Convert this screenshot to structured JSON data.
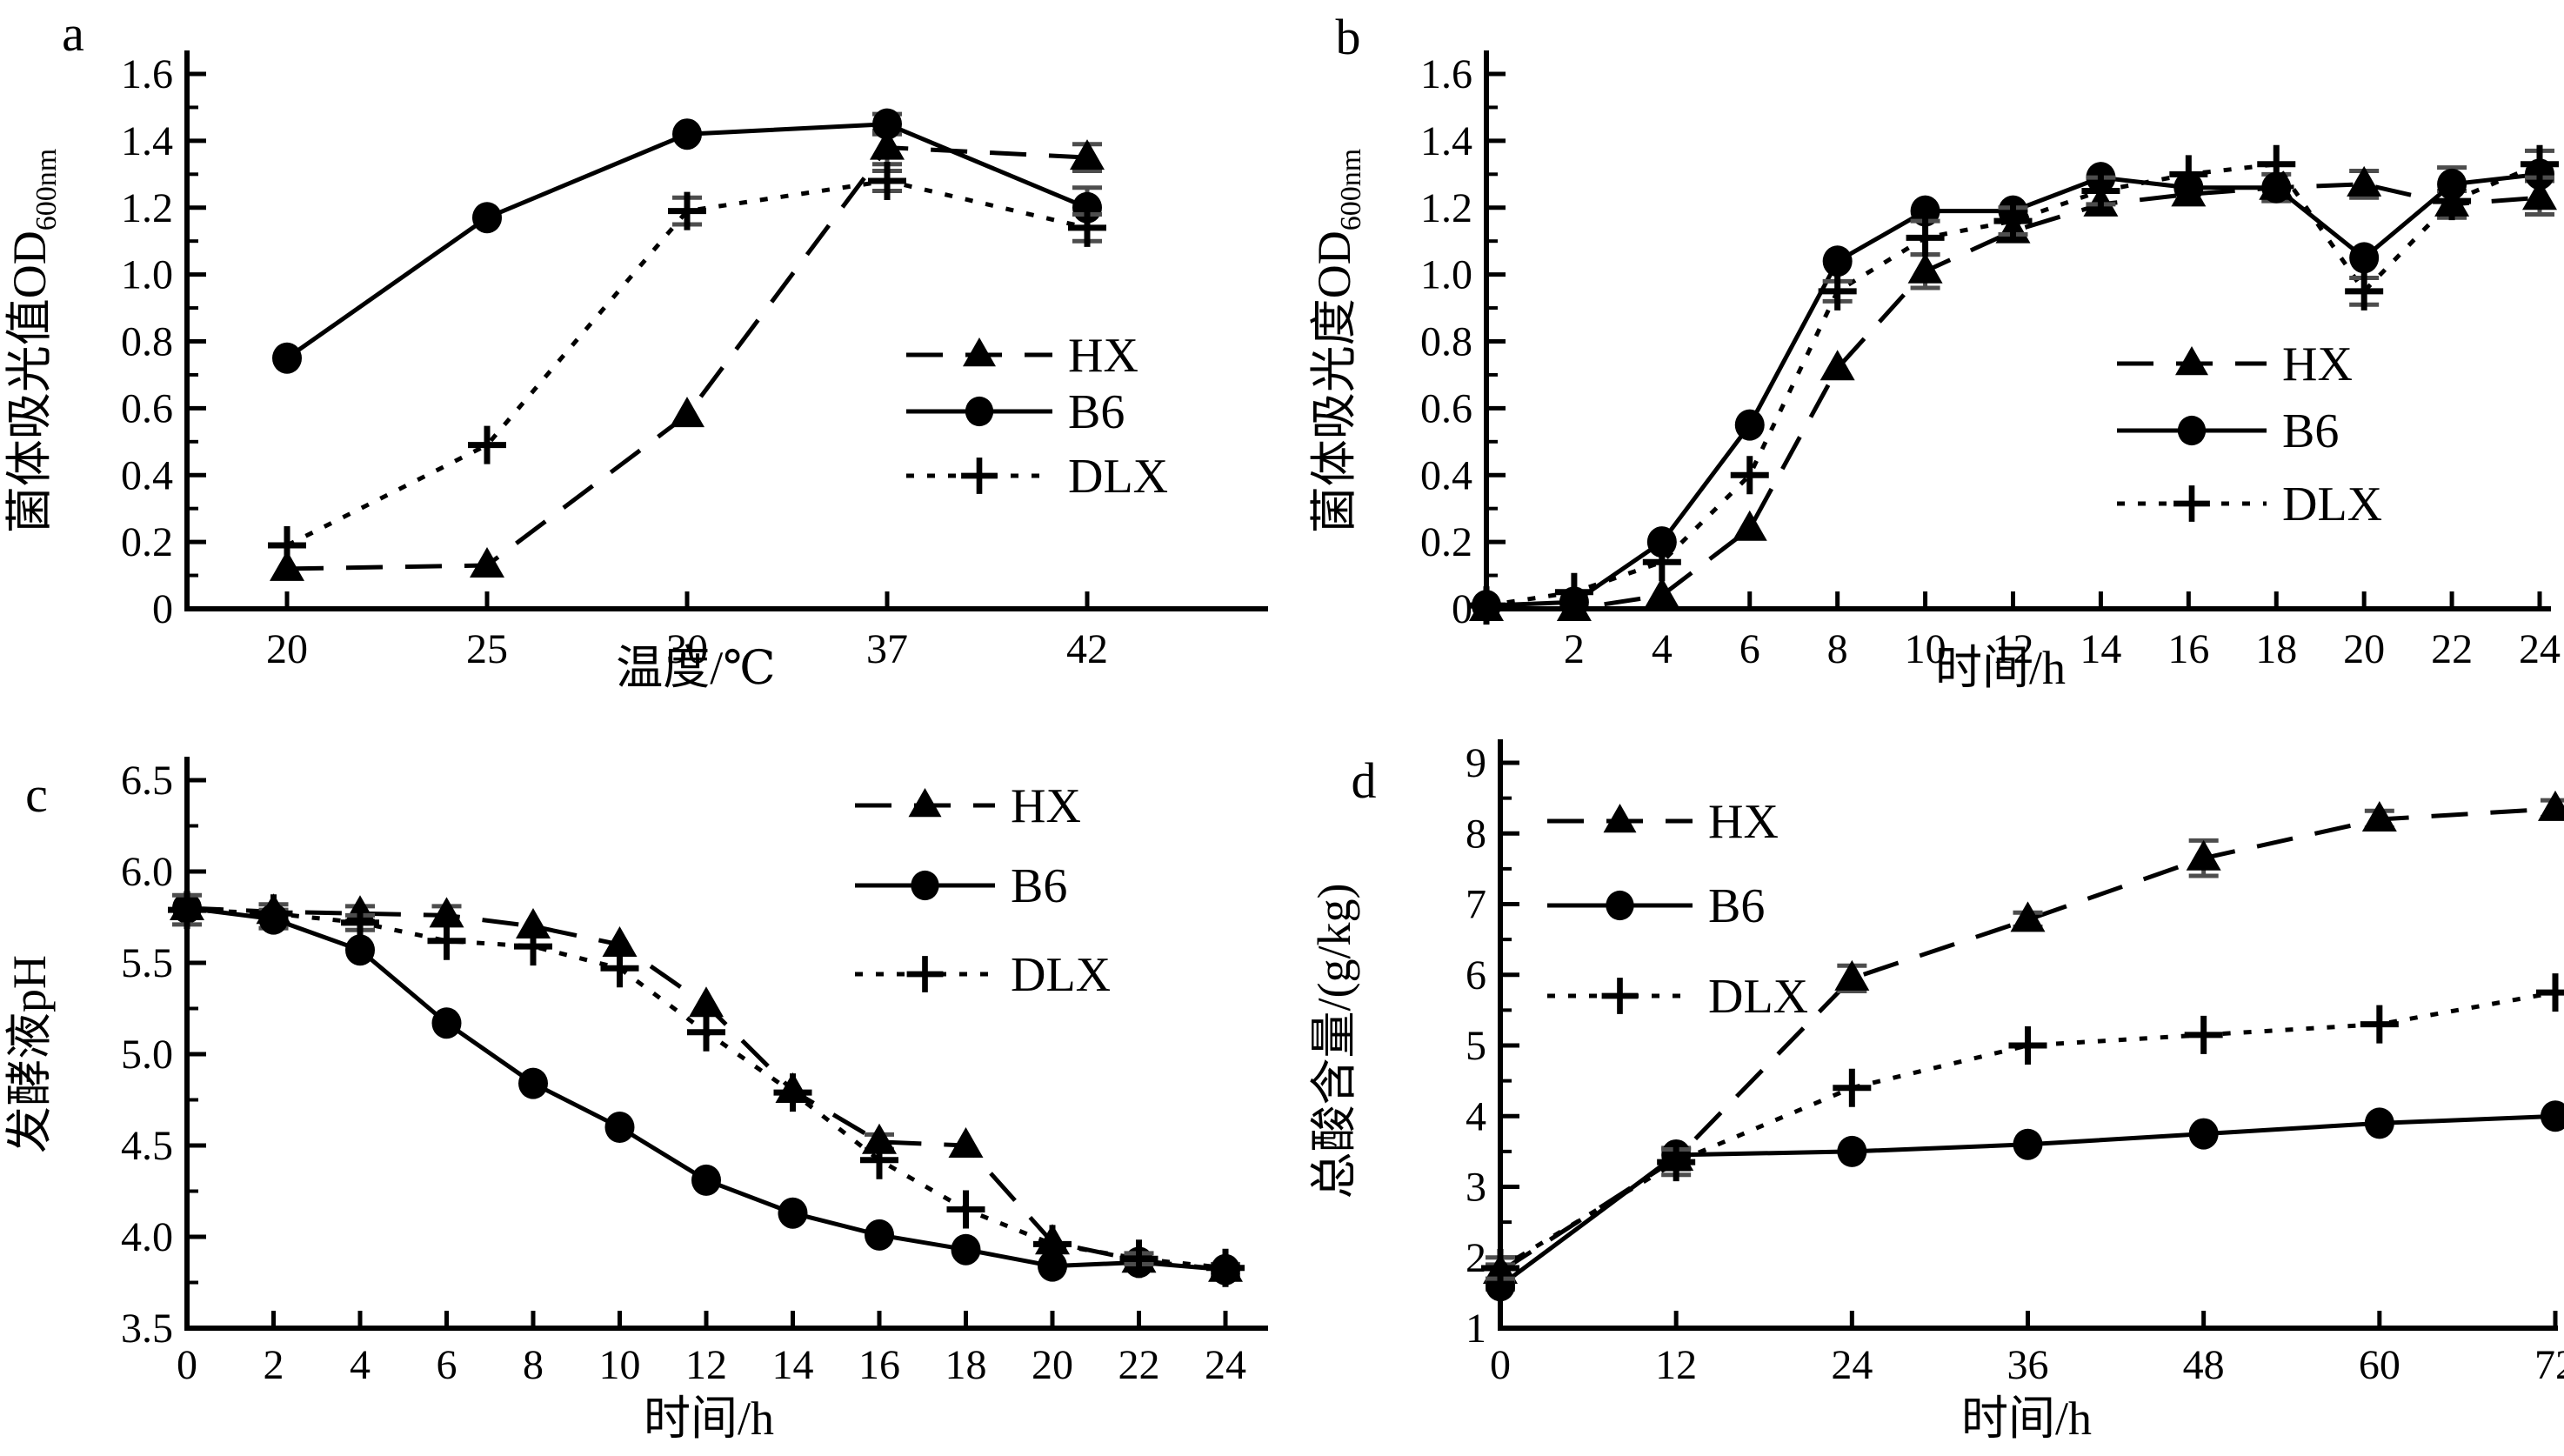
{
  "figure": {
    "background": "#ffffff",
    "line_color": "#000000",
    "error_bar_color": "#4d4d4d",
    "legend_labels": [
      "HX",
      "B6",
      "DLX"
    ]
  },
  "chart_data": [
    {
      "id": "a",
      "type": "line",
      "panel_label": "a",
      "xlabel": "温度/℃",
      "ylabel": "菌体吸光值OD",
      "ylabel_sub": "600nm",
      "x_tick_labels": [
        "20",
        "25",
        "30",
        "37",
        "42"
      ],
      "x": [
        20,
        25,
        30,
        37,
        42
      ],
      "ylim": [
        0,
        1.6
      ],
      "y_major_step": 0.2,
      "y_minor_step": 0.1,
      "y_decimals": 1,
      "legend_position": "inside-right",
      "grid": false,
      "series": [
        {
          "name": "HX",
          "marker": "triangle",
          "dash": "long",
          "values": [
            0.12,
            0.13,
            0.58,
            1.38,
            1.35
          ],
          "err": [
            0,
            0,
            0,
            0.05,
            0.04
          ]
        },
        {
          "name": "B6",
          "marker": "circle",
          "dash": "solid",
          "values": [
            0.75,
            1.17,
            1.42,
            1.45,
            1.2
          ],
          "err": [
            0,
            0,
            0,
            0.03,
            0.06
          ]
        },
        {
          "name": "DLX",
          "marker": "plus",
          "dash": "dot",
          "values": [
            0.19,
            0.49,
            1.19,
            1.28,
            1.14
          ],
          "err": [
            0,
            0,
            0.04,
            0.03,
            0.04
          ]
        }
      ]
    },
    {
      "id": "b",
      "type": "line",
      "panel_label": "b",
      "xlabel": "时间/h",
      "ylabel": "菌体吸光度OD",
      "ylabel_sub": "600nm",
      "x_tick_labels": [
        "2",
        "4",
        "6",
        "8",
        "10",
        "12",
        "14",
        "16",
        "18",
        "20",
        "22",
        "24"
      ],
      "x": [
        0,
        2,
        4,
        6,
        8,
        10,
        12,
        14,
        16,
        18,
        20,
        22,
        24
      ],
      "ylim": [
        0,
        1.6
      ],
      "y_major_step": 0.2,
      "y_minor_step": 0.1,
      "y_decimals": 1,
      "legend_position": "inside-right",
      "grid": false,
      "series": [
        {
          "name": "HX",
          "marker": "triangle",
          "dash": "long",
          "values": [
            0.0,
            0.0,
            0.04,
            0.24,
            0.72,
            1.01,
            1.13,
            1.21,
            1.24,
            1.26,
            1.27,
            1.21,
            1.23
          ],
          "err": [
            0,
            0,
            0,
            0,
            0,
            0.05,
            0,
            0,
            0,
            0.04,
            0.04,
            0.04,
            0.05
          ]
        },
        {
          "name": "B6",
          "marker": "circle",
          "dash": "solid",
          "values": [
            0.01,
            0.02,
            0.2,
            0.55,
            1.04,
            1.19,
            1.19,
            1.29,
            1.26,
            1.26,
            1.05,
            1.27,
            1.3
          ],
          "err": [
            0,
            0,
            0,
            0,
            0,
            0,
            0,
            0,
            0,
            0,
            0,
            0.05,
            0
          ]
        },
        {
          "name": "DLX",
          "marker": "plus",
          "dash": "dot",
          "values": [
            0.01,
            0.05,
            0.14,
            0.4,
            0.95,
            1.11,
            1.16,
            1.25,
            1.3,
            1.33,
            0.95,
            1.22,
            1.33
          ],
          "err": [
            0,
            0,
            0,
            0,
            0.03,
            0.05,
            0.04,
            0.04,
            0,
            0,
            0.04,
            0,
            0.04
          ]
        }
      ]
    },
    {
      "id": "c",
      "type": "line",
      "panel_label": "c",
      "xlabel": "时间/h",
      "ylabel": "发酵液pH",
      "ylabel_sub": "",
      "x_tick_labels": [
        "0",
        "2",
        "4",
        "6",
        "8",
        "10",
        "12",
        "14",
        "16",
        "18",
        "20",
        "22",
        "24"
      ],
      "x": [
        0,
        2,
        4,
        6,
        8,
        10,
        12,
        14,
        16,
        18,
        20,
        22,
        24
      ],
      "ylim": [
        3.5,
        6.5
      ],
      "y_major_step": 0.5,
      "y_minor_step": 0.25,
      "y_decimals": 1,
      "legend_position": "inside-top",
      "grid": false,
      "series": [
        {
          "name": "HX",
          "marker": "triangle",
          "dash": "long",
          "values": [
            5.8,
            5.78,
            5.77,
            5.76,
            5.7,
            5.6,
            5.27,
            4.8,
            4.52,
            4.5,
            3.97,
            3.87,
            3.82
          ],
          "err": [
            0,
            0.04,
            0.04,
            0.05,
            0,
            0,
            0,
            0,
            0.04,
            0,
            0,
            0,
            0.03
          ]
        },
        {
          "name": "B6",
          "marker": "circle",
          "dash": "solid",
          "values": [
            5.8,
            5.74,
            5.57,
            5.17,
            4.84,
            4.6,
            4.31,
            4.13,
            4.01,
            3.93,
            3.84,
            3.86,
            3.82
          ],
          "err": [
            0,
            0.05,
            0,
            0,
            0,
            0,
            0,
            0,
            0,
            0,
            0,
            0,
            0
          ]
        },
        {
          "name": "DLX",
          "marker": "plus",
          "dash": "dot",
          "values": [
            5.79,
            5.77,
            5.72,
            5.62,
            5.59,
            5.47,
            5.12,
            4.79,
            4.42,
            4.15,
            3.96,
            3.88,
            3.83
          ],
          "err": [
            0.08,
            0,
            0.04,
            0,
            0,
            0,
            0,
            0,
            0,
            0,
            0,
            0.03,
            0
          ]
        }
      ]
    },
    {
      "id": "d",
      "type": "line",
      "panel_label": "d",
      "xlabel": "时间/h",
      "ylabel": "总酸含量/(g/kg)",
      "ylabel_sub": "",
      "x_tick_labels": [
        "0",
        "12",
        "24",
        "36",
        "48",
        "60",
        "72"
      ],
      "x": [
        0,
        12,
        24,
        36,
        48,
        60,
        72
      ],
      "ylim": [
        1,
        9
      ],
      "y_major_step": 1,
      "y_minor_step": 0.5,
      "y_decimals": 0,
      "legend_position": "inside-top-left",
      "grid": false,
      "series": [
        {
          "name": "HX",
          "marker": "triangle",
          "dash": "long",
          "values": [
            1.8,
            3.4,
            5.95,
            6.78,
            7.65,
            8.2,
            8.35
          ],
          "err": [
            0.1,
            0.15,
            0.18,
            0.1,
            0.25,
            0.12,
            0.12
          ]
        },
        {
          "name": "B6",
          "marker": "circle",
          "dash": "solid",
          "values": [
            1.6,
            3.45,
            3.5,
            3.6,
            3.75,
            3.9,
            4.0
          ],
          "err": [
            0.05,
            0,
            0,
            0,
            0,
            0,
            0
          ]
        },
        {
          "name": "DLX",
          "marker": "plus",
          "dash": "dot",
          "values": [
            1.85,
            3.35,
            4.4,
            5.0,
            5.15,
            5.3,
            5.75
          ],
          "err": [
            0.15,
            0.18,
            0,
            0,
            0,
            0,
            0
          ]
        }
      ]
    }
  ]
}
